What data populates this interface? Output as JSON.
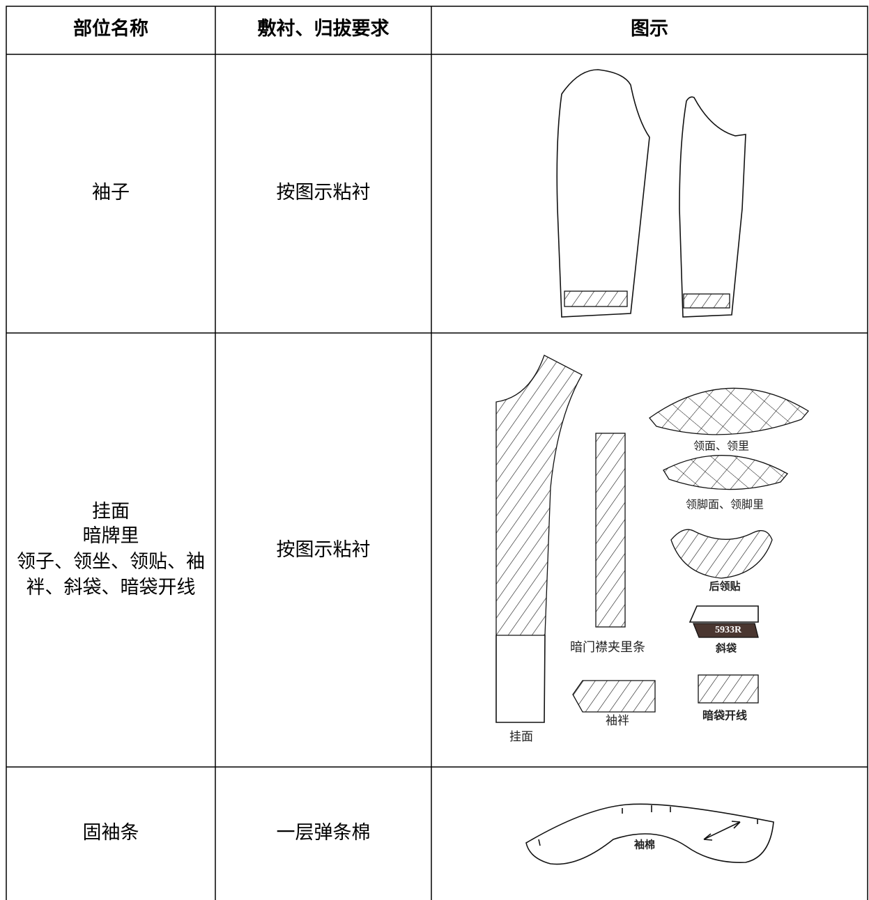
{
  "table": {
    "header": [
      "部位名称",
      "敷衬、归拔要求",
      "图示"
    ],
    "rows": [
      {
        "part": [
          "袖子"
        ],
        "requirement": "按图示粘衬",
        "figure_labels": []
      },
      {
        "part": [
          "挂面",
          "暗牌里",
          "领子、领坐、领贴、袖",
          "袢、斜袋、暗袋开线"
        ],
        "requirement": "按图示粘衬",
        "figure_labels": [
          "领面、领里",
          "领脚面、领脚里",
          "后领贴",
          "5933R",
          "斜袋",
          "暗门襟夹里条",
          "袖袢",
          "暗袋开线",
          "挂面"
        ]
      },
      {
        "part": [
          "固袖条"
        ],
        "requirement": "一层弹条棉",
        "figure_labels": [
          "袖棉"
        ]
      }
    ]
  }
}
